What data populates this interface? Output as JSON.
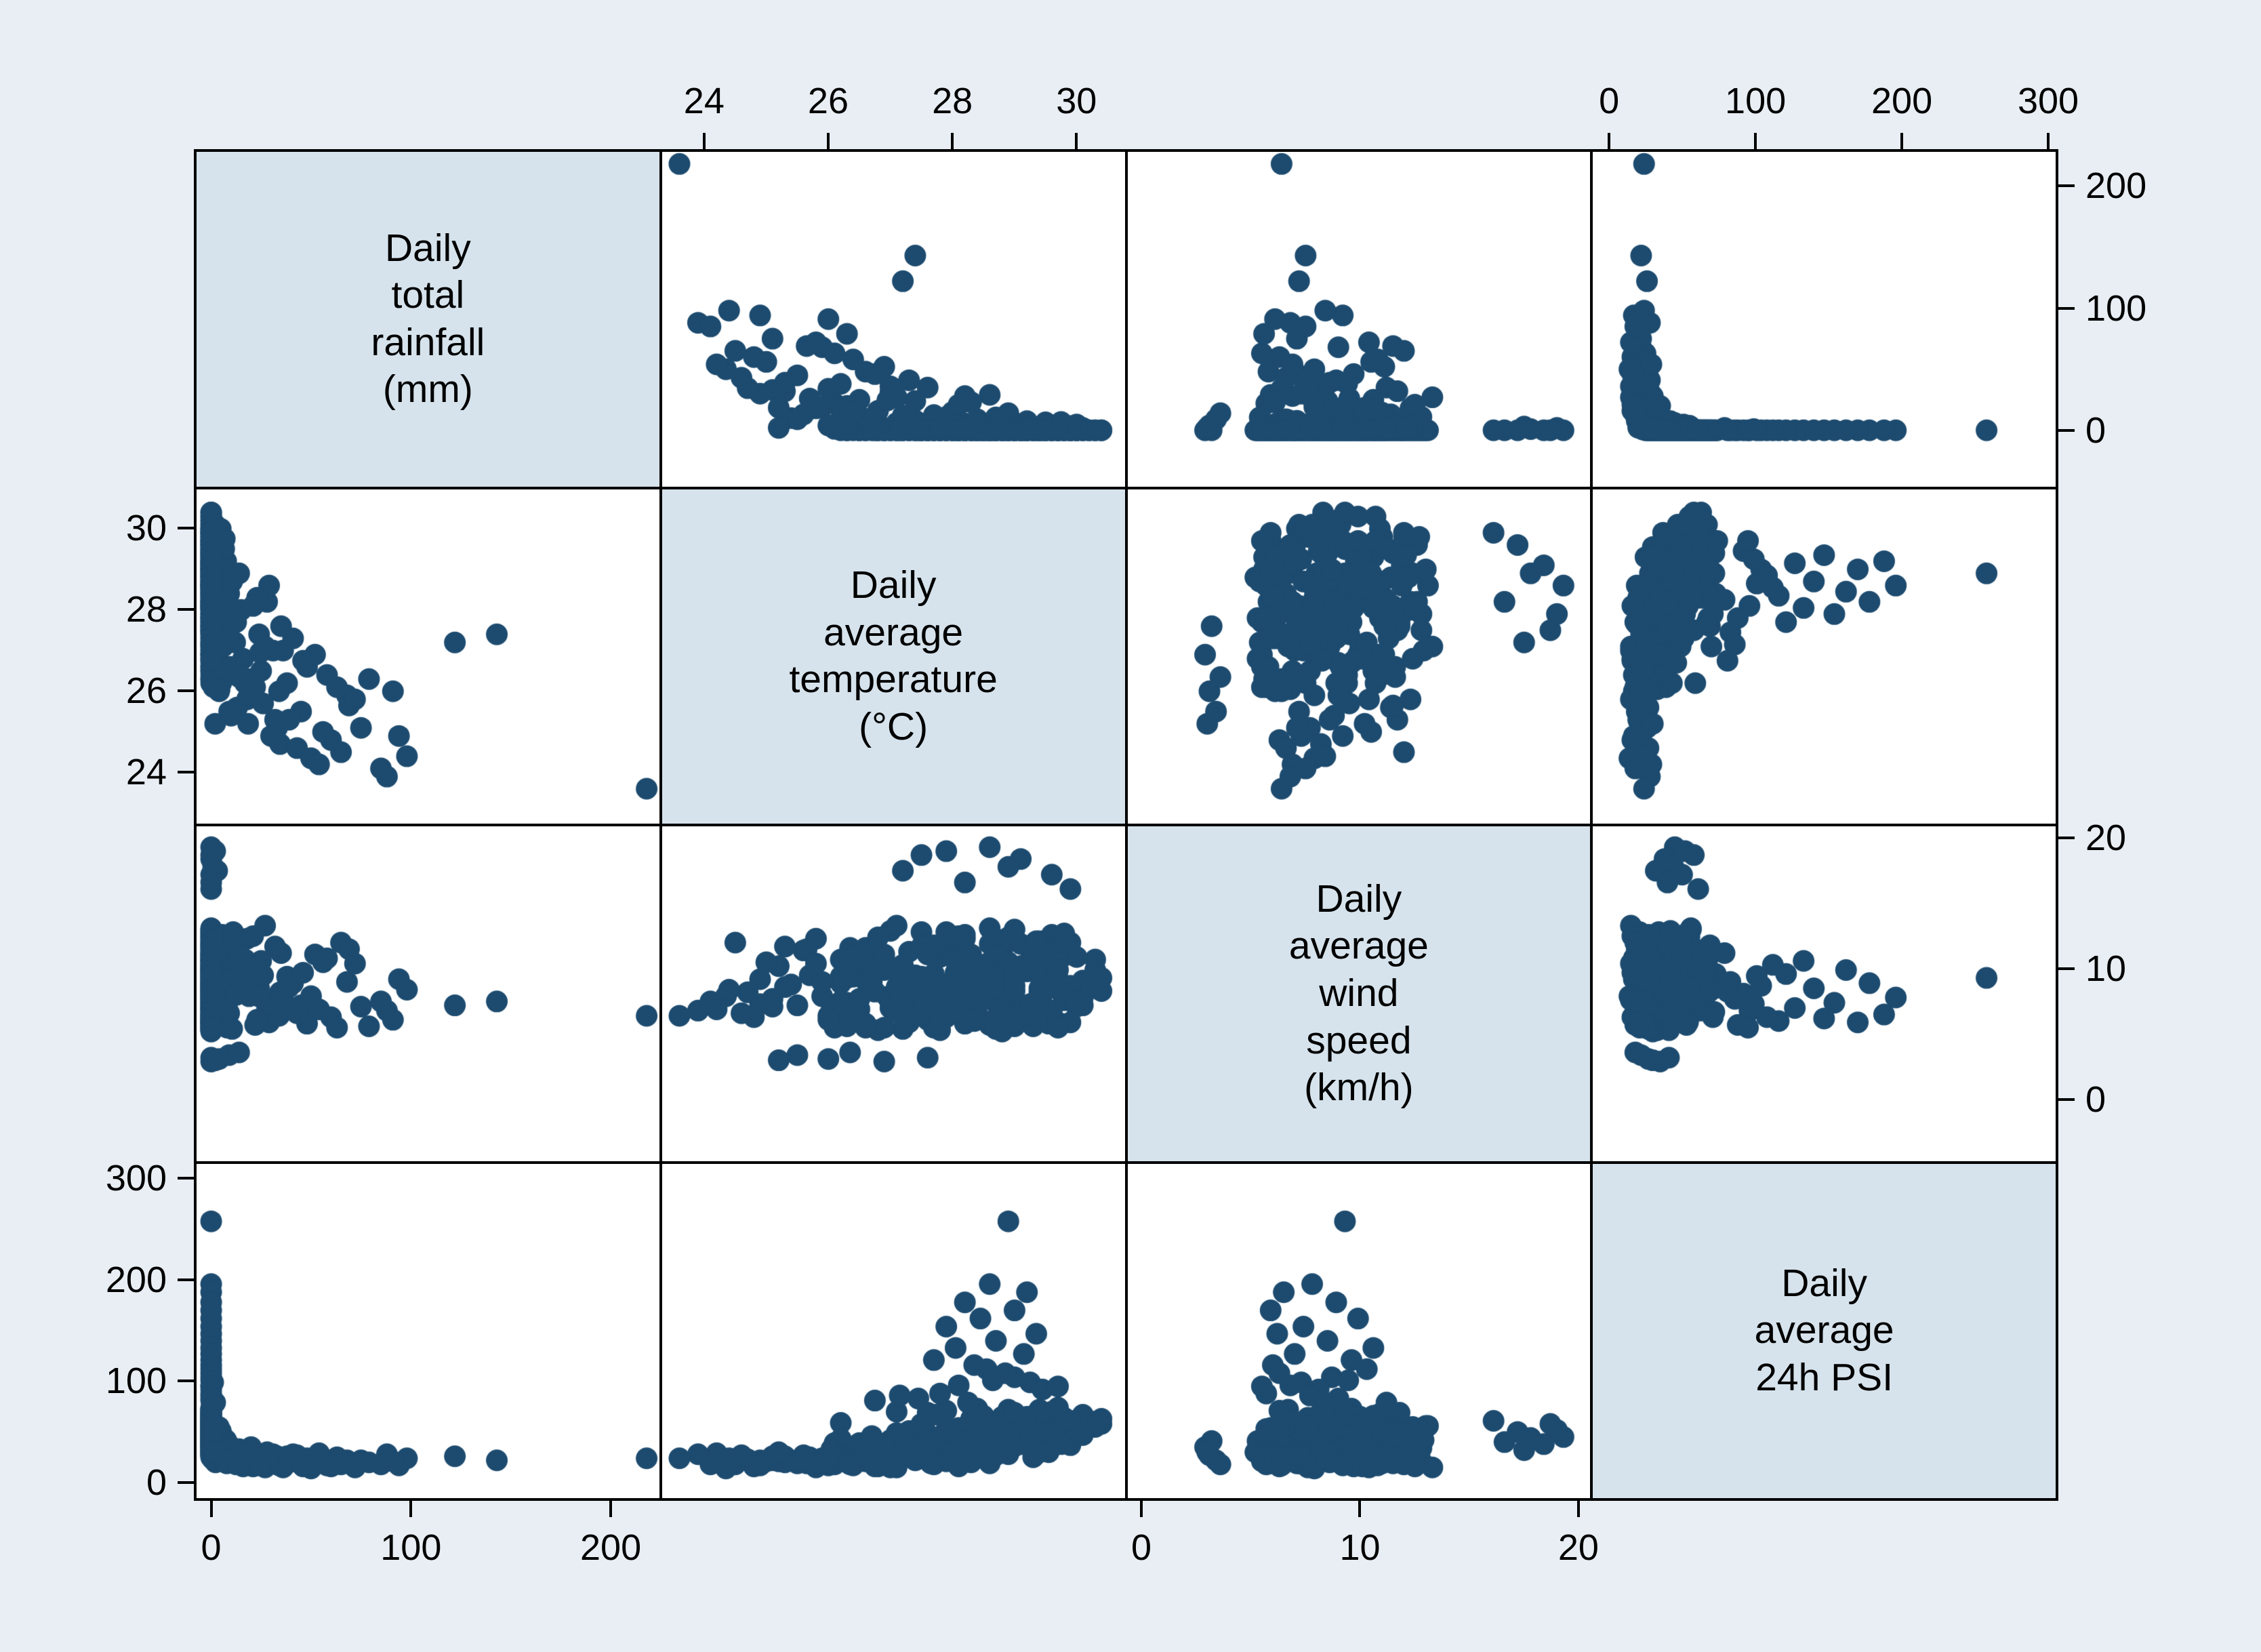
{
  "chart_data": {
    "type": "scatter_matrix",
    "title": "",
    "legend": "none",
    "grid": "cell-borders-only",
    "marker_color": "#1d4b6f",
    "background_color": "#e8eef3",
    "diagonal_fill": "#d6e3ec",
    "panel_fill": "#ffffff",
    "border_color": "#000000",
    "variables": [
      {
        "key": "rainfall",
        "label": "Daily\ntotal\nrainfall\n(mm)",
        "ticks": [
          0,
          100,
          200
        ],
        "x_range": [
          -8,
          225
        ],
        "y_range": [
          -47,
          229
        ]
      },
      {
        "key": "temperature",
        "label": "Daily\naverage\ntemperature\n(°C)",
        "ticks": [
          24,
          26,
          28,
          30
        ],
        "x_range": [
          23.3,
          30.8
        ],
        "y_range": [
          22.7,
          31
        ]
      },
      {
        "key": "wind",
        "label": "Daily\naverage\nwind\nspeed\n(km/h)",
        "ticks": [
          0,
          10,
          20
        ],
        "x_range": [
          -0.7,
          20.6
        ],
        "y_range": [
          -4.8,
          21
        ]
      },
      {
        "key": "psi",
        "label": "Daily\naverage\n24h PSI",
        "ticks": [
          0,
          100,
          200,
          300
        ],
        "x_range": [
          -12,
          306
        ],
        "y_range": [
          -17,
          316
        ]
      }
    ],
    "axis_layout": {
      "top_columns": [
        1,
        3
      ],
      "bottom_columns": [
        0,
        2
      ],
      "right_rows": [
        0,
        2
      ],
      "left_rows": [
        1,
        3
      ]
    },
    "points": [
      [
        0,
        28.1,
        7.2,
        48
      ],
      [
        0,
        29.3,
        9.8,
        55
      ],
      [
        0,
        27.6,
        6.1,
        39
      ],
      [
        0,
        28.8,
        11.4,
        62
      ],
      [
        0,
        29.9,
        8.5,
        51
      ],
      [
        0,
        26.8,
        5.3,
        33
      ],
      [
        0,
        28.4,
        10.2,
        58
      ],
      [
        0,
        29.6,
        12.6,
        44
      ],
      [
        0,
        27.2,
        7.9,
        36
      ],
      [
        0,
        30.1,
        9.1,
        67
      ],
      [
        0,
        28.9,
        6.7,
        72
      ],
      [
        0,
        27.9,
        8.8,
        41
      ],
      [
        0,
        29.1,
        11.9,
        53
      ],
      [
        0,
        28.2,
        5.8,
        29
      ],
      [
        0,
        30.3,
        10.7,
        60
      ],
      [
        0,
        26.5,
        6.9,
        35
      ],
      [
        0,
        29.4,
        8.2,
        47
      ],
      [
        0,
        28.6,
        13.1,
        56
      ],
      [
        0,
        27.4,
        9.5,
        31
      ],
      [
        0,
        29.8,
        7.6,
        64
      ],
      [
        0,
        28.0,
        12.2,
        50
      ],
      [
        0,
        29.0,
        6.4,
        42
      ],
      [
        0,
        27.8,
        10.9,
        68
      ],
      [
        0,
        28.5,
        8.0,
        37
      ],
      [
        0,
        29.7,
        5.9,
        54
      ],
      [
        0,
        26.9,
        9.9,
        27
      ],
      [
        0,
        28.3,
        11.1,
        59
      ],
      [
        0,
        30.0,
        7.1,
        46
      ],
      [
        0,
        27.1,
        8.6,
        70
      ],
      [
        0,
        29.2,
        10.4,
        40
      ],
      [
        0,
        28.7,
        6.2,
        52
      ],
      [
        0,
        27.5,
        12.8,
        34
      ],
      [
        0,
        29.5,
        9.3,
        61
      ],
      [
        0,
        28.1,
        7.7,
        44
      ],
      [
        0,
        26.6,
        11.6,
        30
      ],
      [
        0,
        30.2,
        8.9,
        57
      ],
      [
        0,
        27.7,
        5.5,
        38
      ],
      [
        0,
        28.8,
        10.0,
        65
      ],
      [
        0,
        29.9,
        12.0,
        49
      ],
      [
        0,
        26.3,
        7.4,
        26
      ],
      [
        0,
        28.4,
        9.6,
        73
      ],
      [
        0,
        29.1,
        6.6,
        43
      ],
      [
        0,
        27.3,
        11.3,
        51
      ],
      [
        0,
        30.4,
        8.3,
        58
      ],
      [
        0,
        28.6,
        5.7,
        32
      ],
      [
        0,
        29.3,
        10.6,
        66
      ],
      [
        0,
        27.0,
        7.0,
        39
      ],
      [
        0,
        28.9,
        12.4,
        55
      ],
      [
        0,
        26.7,
        9.0,
        28
      ],
      [
        0,
        29.6,
        6.8,
        62
      ],
      [
        0,
        28.2,
        8.7,
        45
      ],
      [
        0,
        27.6,
        11.8,
        69
      ],
      [
        0,
        29.0,
        5.6,
        36
      ],
      [
        0,
        28.5,
        10.3,
        53
      ],
      [
        0,
        30.1,
        7.8,
        60
      ],
      [
        0,
        26.4,
        9.4,
        25
      ],
      [
        0,
        29.4,
        12.1,
        48
      ],
      [
        0,
        27.9,
        6.3,
        71
      ],
      [
        0,
        28.7,
        8.4,
        41
      ],
      [
        0,
        29.8,
        11.0,
        57
      ],
      [
        0,
        27.2,
        5.4,
        33
      ],
      [
        0,
        28.3,
        9.7,
        63
      ],
      [
        0,
        30.0,
        7.3,
        50
      ],
      [
        0,
        26.8,
        10.8,
        37
      ],
      [
        0,
        29.2,
        6.0,
        54
      ],
      [
        0,
        28.0,
        12.5,
        46
      ],
      [
        0,
        27.7,
        8.1,
        67
      ],
      [
        0,
        29.5,
        10.1,
        42
      ],
      [
        0,
        28.8,
        5.2,
        30
      ],
      [
        0,
        26.2,
        7.5,
        59
      ],
      [
        0,
        29.7,
        9.2,
        74
      ],
      [
        0,
        28.1,
        11.5,
        52
      ],
      [
        0,
        27.4,
        6.5,
        38
      ],
      [
        0,
        30.2,
        8.6,
        61
      ],
      [
        0,
        28.6,
        10.5,
        47
      ],
      [
        0,
        29.0,
        13.0,
        56
      ],
      [
        0,
        27.8,
        7.2,
        35
      ],
      [
        0,
        28.4,
        9.1,
        68
      ],
      [
        0,
        29.9,
        5.9,
        43
      ],
      [
        0,
        26.6,
        11.2,
        31
      ],
      [
        0,
        28.9,
        8.0,
        64
      ],
      [
        0,
        27.1,
        10.0,
        49
      ],
      [
        0,
        29.3,
        6.9,
        58
      ],
      [
        0,
        28.2,
        12.3,
        40
      ],
      [
        0,
        30.3,
        9.9,
        55
      ],
      [
        0,
        26.9,
        5.5,
        34
      ],
      [
        0,
        29.6,
        8.8,
        70
      ],
      [
        0,
        27.5,
        11.7,
        45
      ],
      [
        0,
        28.7,
        7.4,
        51
      ],
      [
        0,
        29.1,
        10.2,
        62
      ],
      [
        0,
        27.3,
        6.1,
        28
      ],
      [
        0,
        28.5,
        9.5,
        66
      ],
      [
        0,
        29.8,
        12.7,
        53
      ],
      [
        0,
        26.5,
        7.7,
        39
      ],
      [
        0,
        30.0,
        10.9,
        59
      ],
      [
        0,
        28.0,
        6.6,
        44
      ],
      [
        0,
        29.4,
        8.5,
        72
      ],
      [
        0,
        27.6,
        11.1,
        48
      ],
      [
        0,
        28.8,
        5.8,
        36
      ],
      [
        0,
        29.2,
        9.8,
        65
      ],
      [
        0,
        27.0,
        12.9,
        42
      ],
      [
        0,
        28.3,
        7.9,
        57
      ],
      [
        0,
        29.7,
        10.7,
        50
      ],
      [
        0,
        26.3,
        6.4,
        29
      ],
      [
        0,
        30.4,
        9.3,
        63
      ],
      [
        0,
        28.6,
        11.9,
        47
      ],
      [
        0,
        27.8,
        5.3,
        41
      ],
      [
        0,
        29.0,
        8.3,
        69
      ],
      [
        0,
        28.1,
        10.6,
        54
      ],
      [
        0,
        29.5,
        7.0,
        60
      ],
      [
        1,
        27.8,
        7.6,
        38
      ],
      [
        3,
        28.5,
        9.2,
        45
      ],
      [
        0.5,
        29.1,
        6.3,
        52
      ],
      [
        2,
        26.9,
        10.8,
        30
      ],
      [
        5,
        28.0,
        8.1,
        26
      ],
      [
        1.5,
        29.4,
        11.5,
        48
      ],
      [
        4,
        27.3,
        5.9,
        34
      ],
      [
        7,
        28.8,
        12.2,
        41
      ],
      [
        0.8,
        26.4,
        7.0,
        23
      ],
      [
        2.5,
        29.7,
        9.9,
        56
      ],
      [
        6,
        27.1,
        6.7,
        29
      ],
      [
        1,
        28.3,
        10.4,
        44
      ],
      [
        3.5,
        29.9,
        8.7,
        37
      ],
      [
        8,
        26.6,
        5.5,
        21
      ],
      [
        0.3,
        28.7,
        11.0,
        50
      ],
      [
        4.5,
        27.5,
        9.4,
        33
      ],
      [
        2,
        30.1,
        7.2,
        47
      ],
      [
        5.5,
        28.2,
        12.6,
        27
      ],
      [
        1.2,
        26.1,
        6.0,
        39
      ],
      [
        7.5,
        29.2,
        10.1,
        42
      ],
      [
        3,
        27.9,
        8.4,
        24
      ],
      [
        0.6,
        28.6,
        5.7,
        53
      ],
      [
        6.5,
        29.5,
        11.3,
        31
      ],
      [
        2.8,
        26.7,
        9.6,
        46
      ],
      [
        4,
        28.1,
        7.8,
        22
      ],
      [
        1.8,
        29.8,
        12.0,
        49
      ],
      [
        8,
        27.4,
        6.5,
        35
      ],
      [
        0.4,
        28.9,
        10.5,
        28
      ],
      [
        5,
        26.2,
        8.9,
        43
      ],
      [
        3.2,
        29.3,
        5.6,
        25
      ],
      [
        7,
        27.7,
        11.8,
        40
      ],
      [
        1.4,
        28.4,
        9.0,
        32
      ],
      [
        4.8,
        30.0,
        7.5,
        51
      ],
      [
        2.2,
        26.8,
        12.4,
        20
      ],
      [
        6,
        29.0,
        6.2,
        45
      ],
      [
        0.9,
        27.2,
        10.3,
        26
      ],
      [
        3.8,
        28.75,
        8.6,
        55
      ],
      [
        1.6,
        29.55,
        5.8,
        30
      ],
      [
        5.8,
        26.35,
        11.6,
        23
      ],
      [
        2.4,
        28.05,
        9.7,
        36
      ],
      [
        7.8,
        27.65,
        7.1,
        19
      ],
      [
        0.7,
        29.35,
        12.1,
        28
      ],
      [
        4.2,
        26.05,
        6.8,
        33
      ],
      [
        1.1,
        28.55,
        10.0,
        24
      ],
      [
        6.8,
        29.75,
        8.2,
        38
      ],
      [
        12,
        27.2,
        8.3,
        31
      ],
      [
        25,
        26.5,
        10.6,
        24
      ],
      [
        9,
        28.4,
        6.6,
        37
      ],
      [
        18,
        25.8,
        12.3,
        20
      ],
      [
        31,
        27.0,
        7.4,
        28
      ],
      [
        14,
        28.9,
        9.8,
        33
      ],
      [
        22,
        26.1,
        5.7,
        18
      ],
      [
        35,
        27.6,
        11.2,
        25
      ],
      [
        10,
        25.4,
        8.8,
        22
      ],
      [
        28,
        28.2,
        6.9,
        30
      ],
      [
        16,
        26.8,
        10.1,
        16
      ],
      [
        33,
        25.1,
        7.7,
        26
      ],
      [
        11,
        27.9,
        12.8,
        21
      ],
      [
        20,
        26.3,
        9.3,
        35
      ],
      [
        29,
        28.6,
        5.9,
        19
      ],
      [
        13,
        25.6,
        11.4,
        27
      ],
      [
        24,
        27.4,
        8.5,
        23
      ],
      [
        34,
        26.0,
        6.4,
        17
      ],
      [
        15,
        28.0,
        10.9,
        29
      ],
      [
        19,
        25.9,
        7.9,
        24
      ],
      [
        27,
        27.1,
        13.3,
        15
      ],
      [
        9.5,
        26.6,
        9.1,
        32
      ],
      [
        23,
        28.3,
        6.1,
        20
      ],
      [
        32,
        25.3,
        11.7,
        26
      ],
      [
        12.5,
        27.7,
        8.0,
        18
      ],
      [
        17,
        26.2,
        10.7,
        28
      ],
      [
        30,
        24.9,
        7.3,
        22
      ],
      [
        21,
        28.1,
        12.5,
        16
      ],
      [
        26,
        25.7,
        9.5,
        25
      ],
      [
        8.5,
        27.3,
        6.7,
        34
      ],
      [
        14.5,
        26.4,
        11.0,
        19
      ],
      [
        34.5,
        24.7,
        8.2,
        23
      ],
      [
        10.5,
        28.7,
        5.4,
        27
      ],
      [
        18.5,
        25.2,
        10.2,
        21
      ],
      [
        24.5,
        26.95,
        7.85,
        17
      ],
      [
        38,
        26.2,
        9.4,
        26
      ],
      [
        45,
        25.5,
        7.2,
        19
      ],
      [
        52,
        26.9,
        11.1,
        23
      ],
      [
        60,
        24.8,
        6.3,
        16
      ],
      [
        41,
        27.3,
        8.9,
        28
      ],
      [
        56,
        25.0,
        10.5,
        21
      ],
      [
        48,
        26.6,
        5.8,
        24
      ],
      [
        65,
        24.5,
        12.0,
        18
      ],
      [
        36,
        27.0,
        7.6,
        15
      ],
      [
        68,
        25.9,
        9.0,
        22
      ],
      [
        43,
        24.6,
        6.6,
        27
      ],
      [
        58,
        26.4,
        10.8,
        17
      ],
      [
        39,
        25.3,
        8.6,
        20
      ],
      [
        63,
        26.1,
        5.5,
        25
      ],
      [
        50,
        24.35,
        7.9,
        14
      ],
      [
        69,
        25.65,
        11.5,
        19
      ],
      [
        46,
        26.75,
        9.7,
        16
      ],
      [
        54,
        24.2,
        6.9,
        29
      ],
      [
        75,
        25.1,
        7.1,
        22
      ],
      [
        88,
        23.9,
        6.8,
        28
      ],
      [
        94,
        24.9,
        9.2,
        17
      ],
      [
        79,
        26.3,
        5.6,
        20
      ],
      [
        98,
        24.4,
        8.4,
        24
      ],
      [
        72,
        25.8,
        10.4,
        15
      ],
      [
        85,
        24.1,
        7.5,
        18
      ],
      [
        91,
        26.0,
        6.1,
        21
      ],
      [
        218,
        23.6,
        6.4,
        24
      ],
      [
        143,
        27.4,
        7.5,
        22
      ],
      [
        122,
        27.2,
        7.2,
        26
      ],
      [
        0,
        28.9,
        9.3,
        258
      ],
      [
        0,
        28.6,
        7.8,
        196
      ],
      [
        0,
        29.2,
        6.5,
        188
      ],
      [
        0,
        28.2,
        8.9,
        178
      ],
      [
        0,
        29.0,
        5.9,
        170
      ],
      [
        0,
        28.45,
        9.9,
        162
      ],
      [
        0,
        27.9,
        7.4,
        154
      ],
      [
        0,
        29.35,
        6.2,
        147
      ],
      [
        0,
        28.7,
        8.5,
        140
      ],
      [
        0,
        28.05,
        10.6,
        133
      ],
      [
        0,
        29.15,
        7.0,
        127
      ],
      [
        0,
        27.7,
        9.6,
        121
      ],
      [
        0,
        28.35,
        6.0,
        116
      ],
      [
        0,
        28.6,
        19.3,
        45
      ],
      [
        2,
        27.9,
        19.0,
        52
      ],
      [
        0,
        29.1,
        18.4,
        38
      ],
      [
        0,
        27.5,
        18.7,
        58
      ],
      [
        1,
        28.9,
        17.8,
        44
      ],
      [
        0,
        29.6,
        17.2,
        50
      ],
      [
        3,
        27.2,
        17.5,
        32
      ],
      [
        0,
        28.2,
        16.6,
        40
      ],
      [
        0,
        29.9,
        16.1,
        61
      ],
      [
        4,
        26.0,
        3.1,
        27
      ],
      [
        0,
        26.9,
        2.9,
        35
      ],
      [
        9,
        25.5,
        3.4,
        22
      ],
      [
        0,
        27.6,
        3.2,
        41
      ],
      [
        14,
        26.35,
        3.6,
        18
      ],
      [
        2,
        25.2,
        3.0,
        30
      ],
      [
        0,
        28.1,
        6.8,
        96
      ],
      [
        0,
        29.0,
        8.7,
        104
      ],
      [
        0,
        27.8,
        5.7,
        88
      ],
      [
        0,
        28.55,
        10.3,
        112
      ],
      [
        1,
        29.25,
        7.3,
        99
      ],
      [
        0,
        27.45,
        9.0,
        83
      ],
      [
        0,
        28.85,
        6.3,
        108
      ],
      [
        0,
        29.45,
        8.1,
        92
      ],
      [
        2,
        28.25,
        11.2,
        79
      ],
      [
        0,
        27.15,
        7.7,
        86
      ],
      [
        0,
        28.65,
        9.45,
        101
      ],
      [
        0,
        29.7,
        5.5,
        95
      ],
      [
        0,
        26.75,
        8.25,
        81
      ]
    ]
  }
}
